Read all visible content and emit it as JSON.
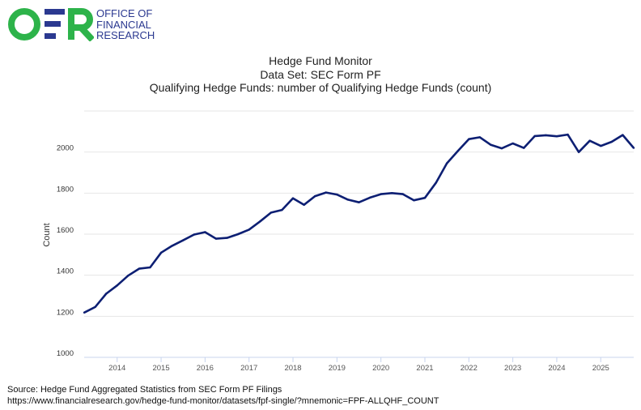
{
  "logo": {
    "mark": "OFR",
    "lines": [
      "OFFICE OF",
      "FINANCIAL",
      "RESEARCH"
    ],
    "green": "#2db34a",
    "blue": "#2b3990"
  },
  "footer": {
    "source": "Source: Hedge Fund Aggregated Statistics from SEC Form PF Filings",
    "url": "https://www.financialresearch.gov/hedge-fund-monitor/datasets/fpf-single/?mnemonic=FPF-ALLQHF_COUNT"
  },
  "chart_data": {
    "type": "line",
    "title": "Hedge Fund Monitor",
    "subtitle": "Data Set: SEC Form PF",
    "subtitle2": "Qualifying Hedge Funds: number of Qualifying Hedge Funds (count)",
    "xlabel": "",
    "ylabel": "Count",
    "ylim": [
      1000,
      2200
    ],
    "xlim": [
      2013.25,
      2025.75
    ],
    "yticks": [
      1000,
      1200,
      1400,
      1600,
      1800,
      2000
    ],
    "xticks": [
      2014,
      2015,
      2016,
      2017,
      2018,
      2019,
      2020,
      2021,
      2022,
      2023,
      2024,
      2025
    ],
    "grid": true,
    "line_color": "#0d1f73",
    "series": [
      {
        "name": "Qualifying Hedge Funds",
        "x": [
          2013.25,
          2013.5,
          2013.75,
          2014,
          2014.25,
          2014.5,
          2014.75,
          2015,
          2015.25,
          2015.5,
          2015.75,
          2016,
          2016.25,
          2016.5,
          2016.75,
          2017,
          2017.25,
          2017.5,
          2017.75,
          2018,
          2018.25,
          2018.5,
          2018.75,
          2019,
          2019.25,
          2019.5,
          2019.75,
          2020,
          2020.25,
          2020.5,
          2020.75,
          2021,
          2021.25,
          2021.5,
          2021.75,
          2022,
          2022.25,
          2022.5,
          2022.75,
          2023,
          2023.25,
          2023.5,
          2023.75,
          2024,
          2024.25,
          2024.5,
          2024.75,
          2025,
          2025.25,
          2025.5,
          2025.75
        ],
        "values": [
          1218,
          1245,
          1310,
          1350,
          1398,
          1432,
          1438,
          1510,
          1543,
          1570,
          1598,
          1610,
          1578,
          1582,
          1600,
          1622,
          1662,
          1705,
          1718,
          1775,
          1743,
          1785,
          1803,
          1793,
          1768,
          1755,
          1778,
          1795,
          1800,
          1795,
          1765,
          1777,
          1850,
          1945,
          2005,
          2063,
          2072,
          2035,
          2018,
          2042,
          2020,
          2078,
          2082,
          2077,
          2085,
          2000,
          2055,
          2030,
          2050,
          2083,
          2020
        ]
      }
    ]
  }
}
